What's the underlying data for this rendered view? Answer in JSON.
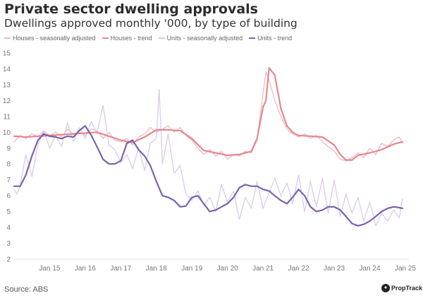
{
  "header": {
    "title": "Private sector dwelling approvals",
    "subtitle": "Dwellings approved monthly '000, by type of building"
  },
  "footer": {
    "source": "Source: ABS",
    "brand": "PropTrack",
    "brand_icon": "proptrack-logo-icon"
  },
  "colors": {
    "houses_sa": "#f2b8c0",
    "houses_trend": "#e5878f",
    "units_sa": "#d9cce8",
    "units_trend": "#7a63b0",
    "axis_text": "#777777",
    "baseline": "#dddddd"
  },
  "chart_data": {
    "type": "line",
    "title": "Private sector dwelling approvals",
    "subtitle": "Dwellings approved monthly '000, by type of building",
    "xlabel": "",
    "ylabel": "",
    "ylim": [
      2,
      15
    ],
    "xlim": [
      2014.0,
      2025.1
    ],
    "y_ticks": [
      2,
      3,
      4,
      5,
      6,
      7,
      8,
      9,
      10,
      11,
      12,
      13,
      14,
      15
    ],
    "x_tick_values": [
      2015,
      2016,
      2017,
      2018,
      2019,
      2020,
      2021,
      2022,
      2023,
      2024,
      2025
    ],
    "x_tick_labels": [
      "Jan 15",
      "Jan 16",
      "Jan 17",
      "Jan 18",
      "Jan 19",
      "Jan 20",
      "Jan 21",
      "Jan 22",
      "Jan 23",
      "Jan 24",
      "Jan 25"
    ],
    "grid": false,
    "legend_position": "top-left",
    "series": [
      {
        "name": "Houses - seasonally adjusted",
        "key": "houses_sa",
        "x": [
          2014.0,
          2014.17,
          2014.33,
          2014.5,
          2014.67,
          2014.83,
          2015.0,
          2015.17,
          2015.33,
          2015.5,
          2015.67,
          2015.83,
          2016.0,
          2016.17,
          2016.33,
          2016.5,
          2016.67,
          2016.83,
          2017.0,
          2017.17,
          2017.33,
          2017.5,
          2017.67,
          2017.83,
          2018.0,
          2018.17,
          2018.33,
          2018.5,
          2018.67,
          2018.83,
          2019.0,
          2019.17,
          2019.33,
          2019.5,
          2019.67,
          2019.83,
          2020.0,
          2020.17,
          2020.33,
          2020.5,
          2020.67,
          2020.83,
          2021.0,
          2021.08,
          2021.17,
          2021.33,
          2021.5,
          2021.67,
          2021.83,
          2022.0,
          2022.17,
          2022.33,
          2022.5,
          2022.67,
          2022.83,
          2023.0,
          2023.17,
          2023.33,
          2023.5,
          2023.67,
          2023.83,
          2024.0,
          2024.17,
          2024.33,
          2024.5,
          2024.67,
          2024.83,
          2024.92
        ],
        "values": [
          9.4,
          9.8,
          9.6,
          9.9,
          9.7,
          10.1,
          9.8,
          10.0,
          9.7,
          10.2,
          9.9,
          10.0,
          9.8,
          10.2,
          10.1,
          9.6,
          10.0,
          9.5,
          9.4,
          9.6,
          9.2,
          9.7,
          9.9,
          10.3,
          10.0,
          10.2,
          10.4,
          10.0,
          10.3,
          9.8,
          9.5,
          9.0,
          8.6,
          8.9,
          8.5,
          8.8,
          8.3,
          8.6,
          8.5,
          8.8,
          8.7,
          9.5,
          12.5,
          13.8,
          13.3,
          12.0,
          11.0,
          10.2,
          9.9,
          9.7,
          9.9,
          9.6,
          9.8,
          9.4,
          9.1,
          8.8,
          8.3,
          8.2,
          8.4,
          8.7,
          8.4,
          9.0,
          8.6,
          9.3,
          9.1,
          9.5,
          9.7,
          9.3
        ]
      },
      {
        "name": "Houses - trend",
        "key": "houses_trend",
        "x": [
          2014.0,
          2014.33,
          2014.67,
          2015.0,
          2015.33,
          2015.67,
          2016.0,
          2016.33,
          2016.67,
          2017.0,
          2017.33,
          2017.67,
          2018.0,
          2018.33,
          2018.67,
          2019.0,
          2019.33,
          2019.67,
          2020.0,
          2020.33,
          2020.67,
          2020.83,
          2021.0,
          2021.08,
          2021.17,
          2021.33,
          2021.5,
          2021.67,
          2021.83,
          2022.0,
          2022.33,
          2022.67,
          2023.0,
          2023.17,
          2023.33,
          2023.5,
          2023.67,
          2024.0,
          2024.33,
          2024.67,
          2024.92
        ],
        "values": [
          9.75,
          9.7,
          9.75,
          9.8,
          9.85,
          9.9,
          9.95,
          10.0,
          9.75,
          9.5,
          9.35,
          9.7,
          10.15,
          10.15,
          10.1,
          9.6,
          8.85,
          8.7,
          8.55,
          8.6,
          8.8,
          9.6,
          11.6,
          12.0,
          14.05,
          13.6,
          11.5,
          10.4,
          10.0,
          9.8,
          9.75,
          9.7,
          9.2,
          8.6,
          8.25,
          8.25,
          8.55,
          8.7,
          8.9,
          9.25,
          9.4
        ]
      },
      {
        "name": "Units - seasonally adjusted",
        "key": "units_sa",
        "x": [
          2014.0,
          2014.08,
          2014.17,
          2014.33,
          2014.5,
          2014.67,
          2014.83,
          2015.0,
          2015.17,
          2015.33,
          2015.5,
          2015.67,
          2015.83,
          2016.0,
          2016.17,
          2016.33,
          2016.5,
          2016.67,
          2016.83,
          2017.0,
          2017.17,
          2017.33,
          2017.5,
          2017.67,
          2017.83,
          2018.0,
          2018.08,
          2018.17,
          2018.33,
          2018.5,
          2018.67,
          2018.83,
          2019.0,
          2019.17,
          2019.33,
          2019.5,
          2019.67,
          2019.83,
          2020.0,
          2020.17,
          2020.33,
          2020.5,
          2020.67,
          2020.83,
          2021.0,
          2021.17,
          2021.33,
          2021.5,
          2021.67,
          2021.83,
          2022.0,
          2022.17,
          2022.33,
          2022.5,
          2022.67,
          2022.83,
          2023.0,
          2023.17,
          2023.33,
          2023.5,
          2023.67,
          2023.83,
          2024.0,
          2024.17,
          2024.33,
          2024.5,
          2024.67,
          2024.83,
          2024.92
        ],
        "values": [
          6.4,
          6.1,
          6.6,
          8.6,
          7.2,
          9.2,
          10.1,
          9.0,
          9.8,
          9.1,
          10.6,
          9.4,
          10.3,
          9.6,
          10.7,
          9.9,
          11.7,
          9.2,
          8.9,
          8.1,
          8.6,
          7.7,
          9.0,
          7.6,
          9.3,
          9.6,
          12.7,
          8.0,
          9.9,
          7.4,
          7.9,
          6.1,
          5.7,
          6.3,
          5.4,
          5.9,
          5.0,
          6.7,
          5.6,
          6.3,
          4.5,
          5.9,
          5.2,
          6.9,
          5.2,
          6.2,
          7.1,
          6.0,
          6.8,
          5.5,
          7.3,
          5.0,
          6.9,
          5.3,
          7.1,
          4.9,
          7.0,
          4.7,
          6.1,
          4.9,
          5.9,
          4.4,
          5.6,
          4.1,
          4.9,
          4.4,
          5.1,
          4.6,
          5.8
        ]
      },
      {
        "name": "Units - trend",
        "key": "units_trend",
        "x": [
          2014.0,
          2014.17,
          2014.33,
          2014.5,
          2014.67,
          2014.83,
          2015.0,
          2015.17,
          2015.33,
          2015.5,
          2015.67,
          2015.83,
          2016.0,
          2016.17,
          2016.33,
          2016.5,
          2016.67,
          2016.83,
          2017.0,
          2017.17,
          2017.33,
          2017.5,
          2017.67,
          2017.83,
          2018.0,
          2018.17,
          2018.33,
          2018.5,
          2018.67,
          2018.83,
          2019.0,
          2019.17,
          2019.33,
          2019.5,
          2019.67,
          2019.83,
          2020.0,
          2020.17,
          2020.33,
          2020.5,
          2020.67,
          2020.83,
          2021.0,
          2021.17,
          2021.33,
          2021.5,
          2021.67,
          2021.83,
          2022.0,
          2022.17,
          2022.33,
          2022.5,
          2022.67,
          2022.83,
          2023.0,
          2023.17,
          2023.33,
          2023.5,
          2023.67,
          2023.83,
          2024.0,
          2024.17,
          2024.33,
          2024.5,
          2024.67,
          2024.83,
          2024.92
        ],
        "values": [
          6.6,
          6.6,
          7.3,
          8.5,
          9.5,
          9.9,
          9.75,
          9.7,
          9.6,
          9.75,
          9.7,
          10.1,
          10.4,
          9.8,
          9.1,
          8.3,
          8.0,
          8.0,
          8.2,
          9.3,
          9.5,
          8.9,
          8.5,
          7.9,
          6.9,
          6.0,
          5.9,
          5.7,
          5.3,
          5.35,
          5.9,
          6.0,
          5.5,
          5.0,
          5.1,
          5.3,
          5.5,
          5.9,
          6.5,
          6.7,
          6.6,
          6.6,
          6.4,
          6.3,
          6.0,
          5.7,
          5.5,
          5.9,
          6.4,
          6.0,
          5.3,
          5.0,
          5.1,
          5.3,
          5.3,
          5.1,
          4.7,
          4.25,
          4.1,
          4.2,
          4.4,
          4.7,
          5.0,
          5.2,
          5.3,
          5.25,
          5.2
        ]
      }
    ]
  }
}
